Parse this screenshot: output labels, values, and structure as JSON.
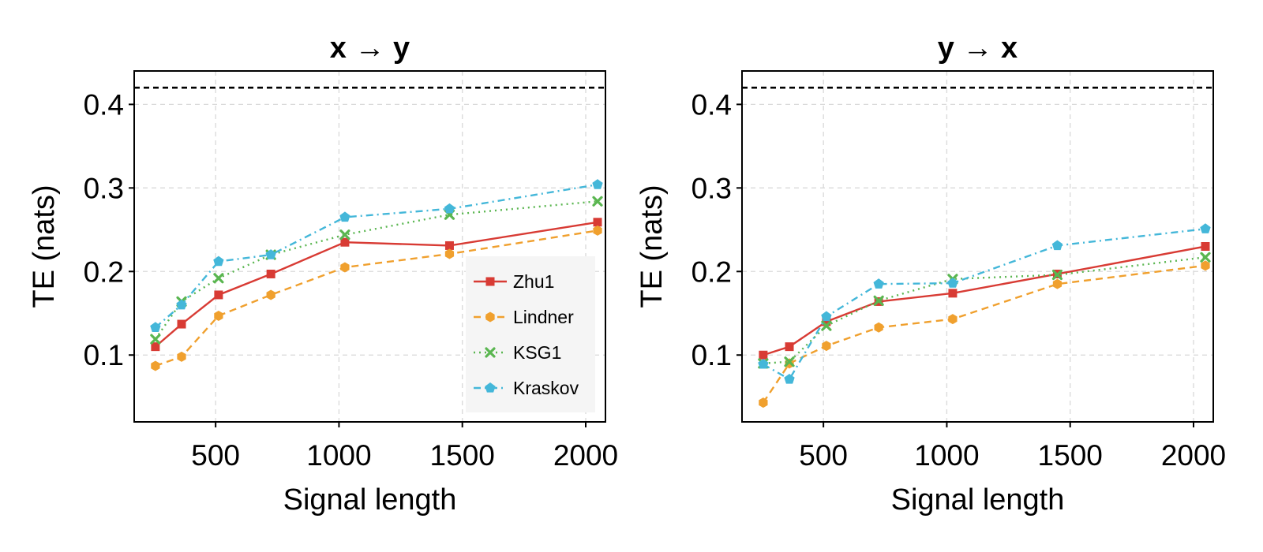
{
  "chart_data": [
    {
      "type": "line",
      "title": "x → y",
      "xlabel": "Signal length",
      "ylabel": "TE (nats)",
      "xlim": [
        170,
        2080
      ],
      "ylim": [
        0.02,
        0.44
      ],
      "xticks": [
        500,
        1000,
        1500,
        2000
      ],
      "yticks": [
        0.1,
        0.2,
        0.3,
        0.4
      ],
      "xtick_labels": [
        "500",
        "1000",
        "1500",
        "2000"
      ],
      "ytick_labels": [
        "0.1",
        "0.2",
        "0.3",
        "0.4"
      ],
      "grid": true,
      "reference_line": {
        "y": 0.42,
        "style": "dashed",
        "color": "#000000"
      },
      "legend": {
        "show": true,
        "placement": "bottom-right"
      },
      "x": [
        256,
        362,
        512,
        724,
        1024,
        1448,
        2048
      ],
      "series": [
        {
          "name": "Zhu1",
          "color": "#d83b34",
          "dash": "solid",
          "marker": "square",
          "values": [
            0.11,
            0.137,
            0.172,
            0.197,
            0.235,
            0.231,
            0.259
          ]
        },
        {
          "name": "Lindner",
          "color": "#f0a02e",
          "dash": "dashed",
          "marker": "hexagon",
          "values": [
            0.087,
            0.098,
            0.147,
            0.172,
            0.205,
            0.221,
            0.249
          ]
        },
        {
          "name": "KSG1",
          "color": "#5ab650",
          "dash": "dotted",
          "marker": "cross",
          "values": [
            0.119,
            0.164,
            0.192,
            0.22,
            0.244,
            0.268,
            0.284
          ]
        },
        {
          "name": "Kraskov",
          "color": "#44b7d9",
          "dash": "dashdot",
          "marker": "pentagon",
          "values": [
            0.133,
            0.16,
            0.212,
            0.22,
            0.265,
            0.275,
            0.304
          ]
        }
      ]
    },
    {
      "type": "line",
      "title": "y → x",
      "xlabel": "Signal length",
      "ylabel": "TE (nats)",
      "xlim": [
        170,
        2080
      ],
      "ylim": [
        0.02,
        0.44
      ],
      "xticks": [
        500,
        1000,
        1500,
        2000
      ],
      "yticks": [
        0.1,
        0.2,
        0.3,
        0.4
      ],
      "xtick_labels": [
        "500",
        "1000",
        "1500",
        "2000"
      ],
      "ytick_labels": [
        "0.1",
        "0.2",
        "0.3",
        "0.4"
      ],
      "grid": true,
      "reference_line": {
        "y": 0.42,
        "style": "dashed",
        "color": "#000000"
      },
      "legend": {
        "show": false
      },
      "x": [
        256,
        362,
        512,
        724,
        1024,
        1448,
        2048
      ],
      "series": [
        {
          "name": "Zhu1",
          "color": "#d83b34",
          "dash": "solid",
          "marker": "square",
          "values": [
            0.1,
            0.11,
            0.14,
            0.164,
            0.174,
            0.197,
            0.23
          ]
        },
        {
          "name": "Lindner",
          "color": "#f0a02e",
          "dash": "dashed",
          "marker": "hexagon",
          "values": [
            0.043,
            0.09,
            0.111,
            0.133,
            0.143,
            0.185,
            0.207
          ]
        },
        {
          "name": "KSG1",
          "color": "#5ab650",
          "dash": "dotted",
          "marker": "cross",
          "values": [
            0.09,
            0.092,
            0.135,
            0.165,
            0.191,
            0.196,
            0.217
          ]
        },
        {
          "name": "Kraskov",
          "color": "#44b7d9",
          "dash": "dashdot",
          "marker": "pentagon",
          "values": [
            0.089,
            0.071,
            0.146,
            0.185,
            0.186,
            0.231,
            0.251
          ]
        }
      ]
    }
  ]
}
